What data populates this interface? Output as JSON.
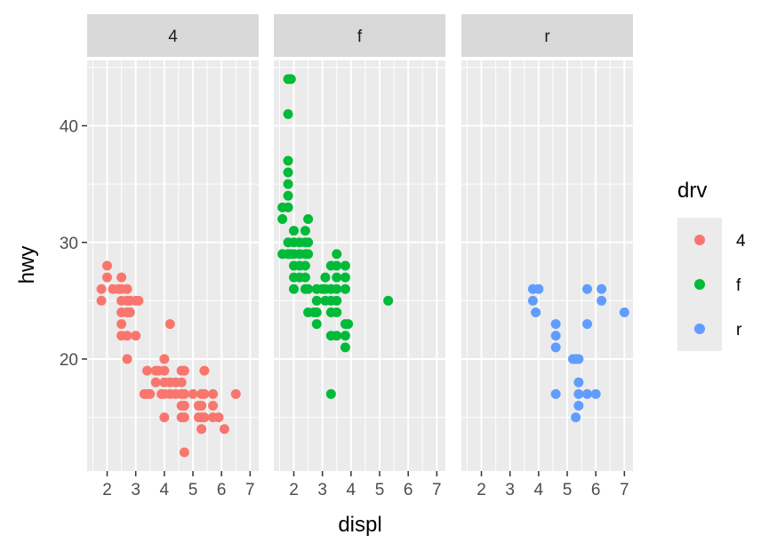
{
  "chart_data": {
    "type": "scatter",
    "title": "",
    "xlabel": "displ",
    "ylabel": "hwy",
    "xlim": [
      1.3,
      7.3
    ],
    "ylim": [
      10.4,
      45.6
    ],
    "x_ticks": [
      2,
      3,
      4,
      5,
      6,
      7
    ],
    "y_ticks": [
      20,
      30,
      40
    ],
    "grid": true,
    "facet_by": "drv",
    "legend": {
      "title": "drv",
      "placement": "right",
      "entries": [
        {
          "label": "4",
          "color": "#F8766D"
        },
        {
          "label": "f",
          "color": "#00BA38"
        },
        {
          "label": "r",
          "color": "#619CFF"
        }
      ]
    },
    "series": [
      {
        "facet": "4",
        "color": "#F8766D",
        "points": [
          [
            1.8,
            26
          ],
          [
            1.8,
            25
          ],
          [
            2.0,
            28
          ],
          [
            2.0,
            27
          ],
          [
            2.2,
            26
          ],
          [
            2.4,
            26
          ],
          [
            2.5,
            27
          ],
          [
            2.5,
            26
          ],
          [
            2.5,
            25
          ],
          [
            2.5,
            24
          ],
          [
            2.5,
            23
          ],
          [
            2.5,
            22
          ],
          [
            2.7,
            26
          ],
          [
            2.7,
            25
          ],
          [
            2.7,
            24
          ],
          [
            2.7,
            22
          ],
          [
            2.7,
            20
          ],
          [
            2.8,
            25
          ],
          [
            2.8,
            24
          ],
          [
            3.0,
            25
          ],
          [
            3.0,
            22
          ],
          [
            3.1,
            25
          ],
          [
            3.3,
            17
          ],
          [
            3.4,
            17
          ],
          [
            3.4,
            19
          ],
          [
            3.5,
            17
          ],
          [
            3.7,
            19
          ],
          [
            3.7,
            18
          ],
          [
            3.8,
            19
          ],
          [
            3.9,
            17
          ],
          [
            4.0,
            20
          ],
          [
            4.0,
            19
          ],
          [
            4.0,
            18
          ],
          [
            4.0,
            17
          ],
          [
            4.0,
            15
          ],
          [
            4.2,
            23
          ],
          [
            4.2,
            18
          ],
          [
            4.2,
            17
          ],
          [
            4.4,
            18
          ],
          [
            4.4,
            17
          ],
          [
            4.6,
            19
          ],
          [
            4.6,
            18
          ],
          [
            4.6,
            17
          ],
          [
            4.6,
            16
          ],
          [
            4.6,
            15
          ],
          [
            4.7,
            19
          ],
          [
            4.7,
            17
          ],
          [
            4.7,
            16
          ],
          [
            4.7,
            15
          ],
          [
            4.7,
            12
          ],
          [
            5.0,
            17
          ],
          [
            5.2,
            16
          ],
          [
            5.2,
            15
          ],
          [
            5.3,
            17
          ],
          [
            5.3,
            16
          ],
          [
            5.3,
            15
          ],
          [
            5.3,
            14
          ],
          [
            5.4,
            17
          ],
          [
            5.4,
            15
          ],
          [
            5.4,
            19
          ],
          [
            5.7,
            17
          ],
          [
            5.7,
            16
          ],
          [
            5.7,
            15
          ],
          [
            5.9,
            15
          ],
          [
            6.1,
            14
          ],
          [
            6.5,
            17
          ]
        ]
      },
      {
        "facet": "f",
        "color": "#00BA38",
        "points": [
          [
            1.6,
            33
          ],
          [
            1.6,
            32
          ],
          [
            1.6,
            29
          ],
          [
            1.8,
            44
          ],
          [
            1.8,
            41
          ],
          [
            1.8,
            37
          ],
          [
            1.8,
            36
          ],
          [
            1.8,
            35
          ],
          [
            1.8,
            34
          ],
          [
            1.8,
            33
          ],
          [
            1.8,
            30
          ],
          [
            1.8,
            29
          ],
          [
            1.9,
            44
          ],
          [
            1.9,
            29
          ],
          [
            2.0,
            31
          ],
          [
            2.0,
            30
          ],
          [
            2.0,
            29
          ],
          [
            2.0,
            28
          ],
          [
            2.0,
            27
          ],
          [
            2.0,
            26
          ],
          [
            2.2,
            30
          ],
          [
            2.2,
            29
          ],
          [
            2.2,
            28
          ],
          [
            2.2,
            27
          ],
          [
            2.4,
            31
          ],
          [
            2.4,
            30
          ],
          [
            2.4,
            29
          ],
          [
            2.4,
            28
          ],
          [
            2.4,
            27
          ],
          [
            2.4,
            26
          ],
          [
            2.5,
            32
          ],
          [
            2.5,
            30
          ],
          [
            2.5,
            29
          ],
          [
            2.5,
            26
          ],
          [
            2.5,
            24
          ],
          [
            2.7,
            24
          ],
          [
            2.8,
            26
          ],
          [
            2.8,
            25
          ],
          [
            2.8,
            24
          ],
          [
            2.8,
            23
          ],
          [
            3.0,
            26
          ],
          [
            3.1,
            26
          ],
          [
            3.1,
            25
          ],
          [
            3.1,
            27
          ],
          [
            3.3,
            26
          ],
          [
            3.3,
            25
          ],
          [
            3.3,
            24
          ],
          [
            3.3,
            22
          ],
          [
            3.3,
            17
          ],
          [
            3.3,
            28
          ],
          [
            3.5,
            29
          ],
          [
            3.5,
            27
          ],
          [
            3.5,
            26
          ],
          [
            3.5,
            25
          ],
          [
            3.5,
            24
          ],
          [
            3.5,
            22
          ],
          [
            3.5,
            28
          ],
          [
            3.8,
            28
          ],
          [
            3.8,
            27
          ],
          [
            3.8,
            26
          ],
          [
            3.8,
            23
          ],
          [
            3.8,
            22
          ],
          [
            3.8,
            21
          ],
          [
            3.9,
            23
          ],
          [
            5.3,
            25
          ]
        ]
      },
      {
        "facet": "r",
        "color": "#619CFF",
        "points": [
          [
            3.8,
            26
          ],
          [
            3.8,
            25
          ],
          [
            3.9,
            24
          ],
          [
            4.0,
            26
          ],
          [
            4.6,
            23
          ],
          [
            4.6,
            22
          ],
          [
            4.6,
            21
          ],
          [
            4.6,
            17
          ],
          [
            5.2,
            20
          ],
          [
            5.3,
            20
          ],
          [
            5.3,
            15
          ],
          [
            5.4,
            18
          ],
          [
            5.4,
            17
          ],
          [
            5.4,
            16
          ],
          [
            5.4,
            20
          ],
          [
            5.7,
            26
          ],
          [
            5.7,
            23
          ],
          [
            5.7,
            17
          ],
          [
            6.0,
            17
          ],
          [
            6.2,
            26
          ],
          [
            6.2,
            25
          ],
          [
            7.0,
            24
          ]
        ]
      }
    ]
  }
}
